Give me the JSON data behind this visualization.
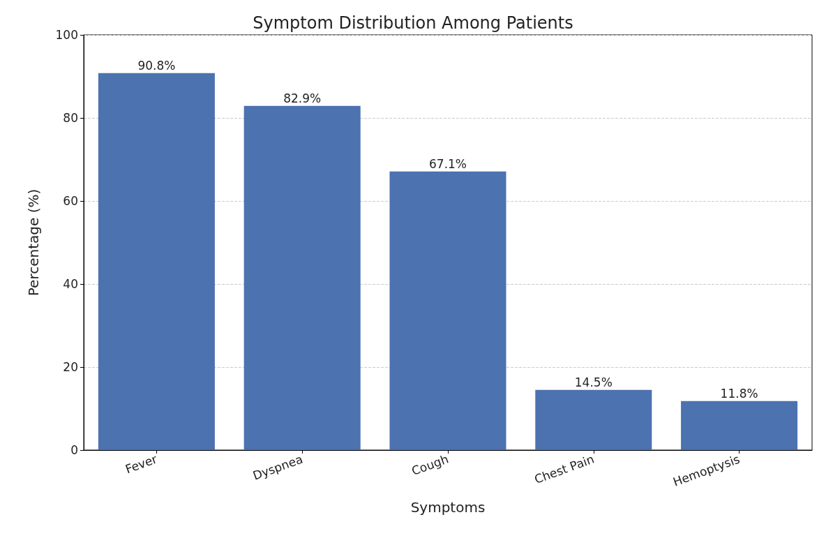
{
  "chart_data": {
    "type": "bar",
    "title": "Symptom Distribution Among Patients",
    "xlabel": "Symptoms",
    "ylabel": "Percentage (%)",
    "categories": [
      "Fever",
      "Dyspnea",
      "Cough",
      "Chest Pain",
      "Hemoptysis"
    ],
    "values": [
      90.8,
      82.9,
      67.1,
      14.5,
      11.8
    ],
    "value_labels": [
      "90.8%",
      "82.9%",
      "67.1%",
      "14.5%",
      "11.8%"
    ],
    "color": "#4c72b0",
    "ylim": [
      0,
      100
    ],
    "yticks": [
      0,
      20,
      40,
      60,
      80,
      100
    ],
    "grid": "y"
  }
}
